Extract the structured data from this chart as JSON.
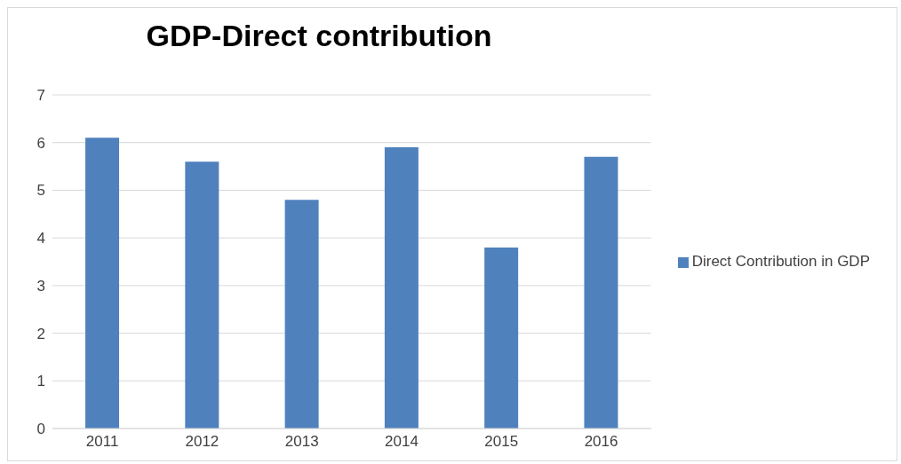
{
  "chart_data": {
    "type": "bar",
    "title": "GDP-Direct contribution",
    "categories": [
      "2011",
      "2012",
      "2013",
      "2014",
      "2015",
      "2016"
    ],
    "series": [
      {
        "name": "Direct Contribution in GDP",
        "color": "#4f81bd",
        "values": [
          6.1,
          5.6,
          4.8,
          5.9,
          3.8,
          5.7
        ]
      }
    ],
    "ylim": [
      0,
      7
    ],
    "yticks": [
      0,
      1,
      2,
      3,
      4,
      5,
      6,
      7
    ],
    "grid": "y",
    "legend": "right"
  }
}
